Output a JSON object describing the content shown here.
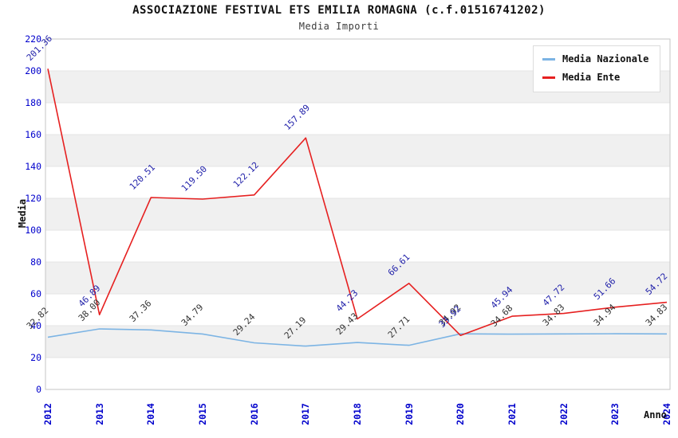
{
  "header": {
    "title": "ASSOCIAZIONE FESTIVAL ETS EMILIA ROMAGNA (c.f.01516741202)",
    "subtitle": "Media Importi"
  },
  "legend": {
    "items": [
      {
        "label": "Media Nazionale",
        "color": "#7cb4e4"
      },
      {
        "label": "Media Ente",
        "color": "#e62020"
      }
    ]
  },
  "chart_data": {
    "type": "line",
    "categories": [
      "2012",
      "2013",
      "2014",
      "2015",
      "2016",
      "2017",
      "2018",
      "2019",
      "2020",
      "2021",
      "2022",
      "2023",
      "2024"
    ],
    "series": [
      {
        "name": "Media Nazionale",
        "color": "#7cb4e4",
        "label_color": "#333333",
        "values": [
          32.82,
          38.0,
          37.36,
          34.79,
          29.24,
          27.19,
          29.43,
          27.71,
          34.92,
          34.68,
          34.83,
          34.94,
          34.83
        ]
      },
      {
        "name": "Media Ente",
        "color": "#e62020",
        "label_color": "#2222aa",
        "values": [
          201.36,
          46.89,
          120.51,
          119.5,
          122.12,
          157.89,
          44.23,
          66.61,
          33.92,
          45.94,
          47.72,
          51.66,
          54.72
        ]
      }
    ],
    "xlabel": "Anno",
    "ylabel": "Media",
    "ylim": [
      0,
      220
    ],
    "ytick_step": 20,
    "axis_text_color": "#0000cc",
    "band_color": "#f0f0f0",
    "plot_border_color": "#c6c6c6",
    "grid": "banded-horizontal",
    "legend_position": "top-right"
  }
}
